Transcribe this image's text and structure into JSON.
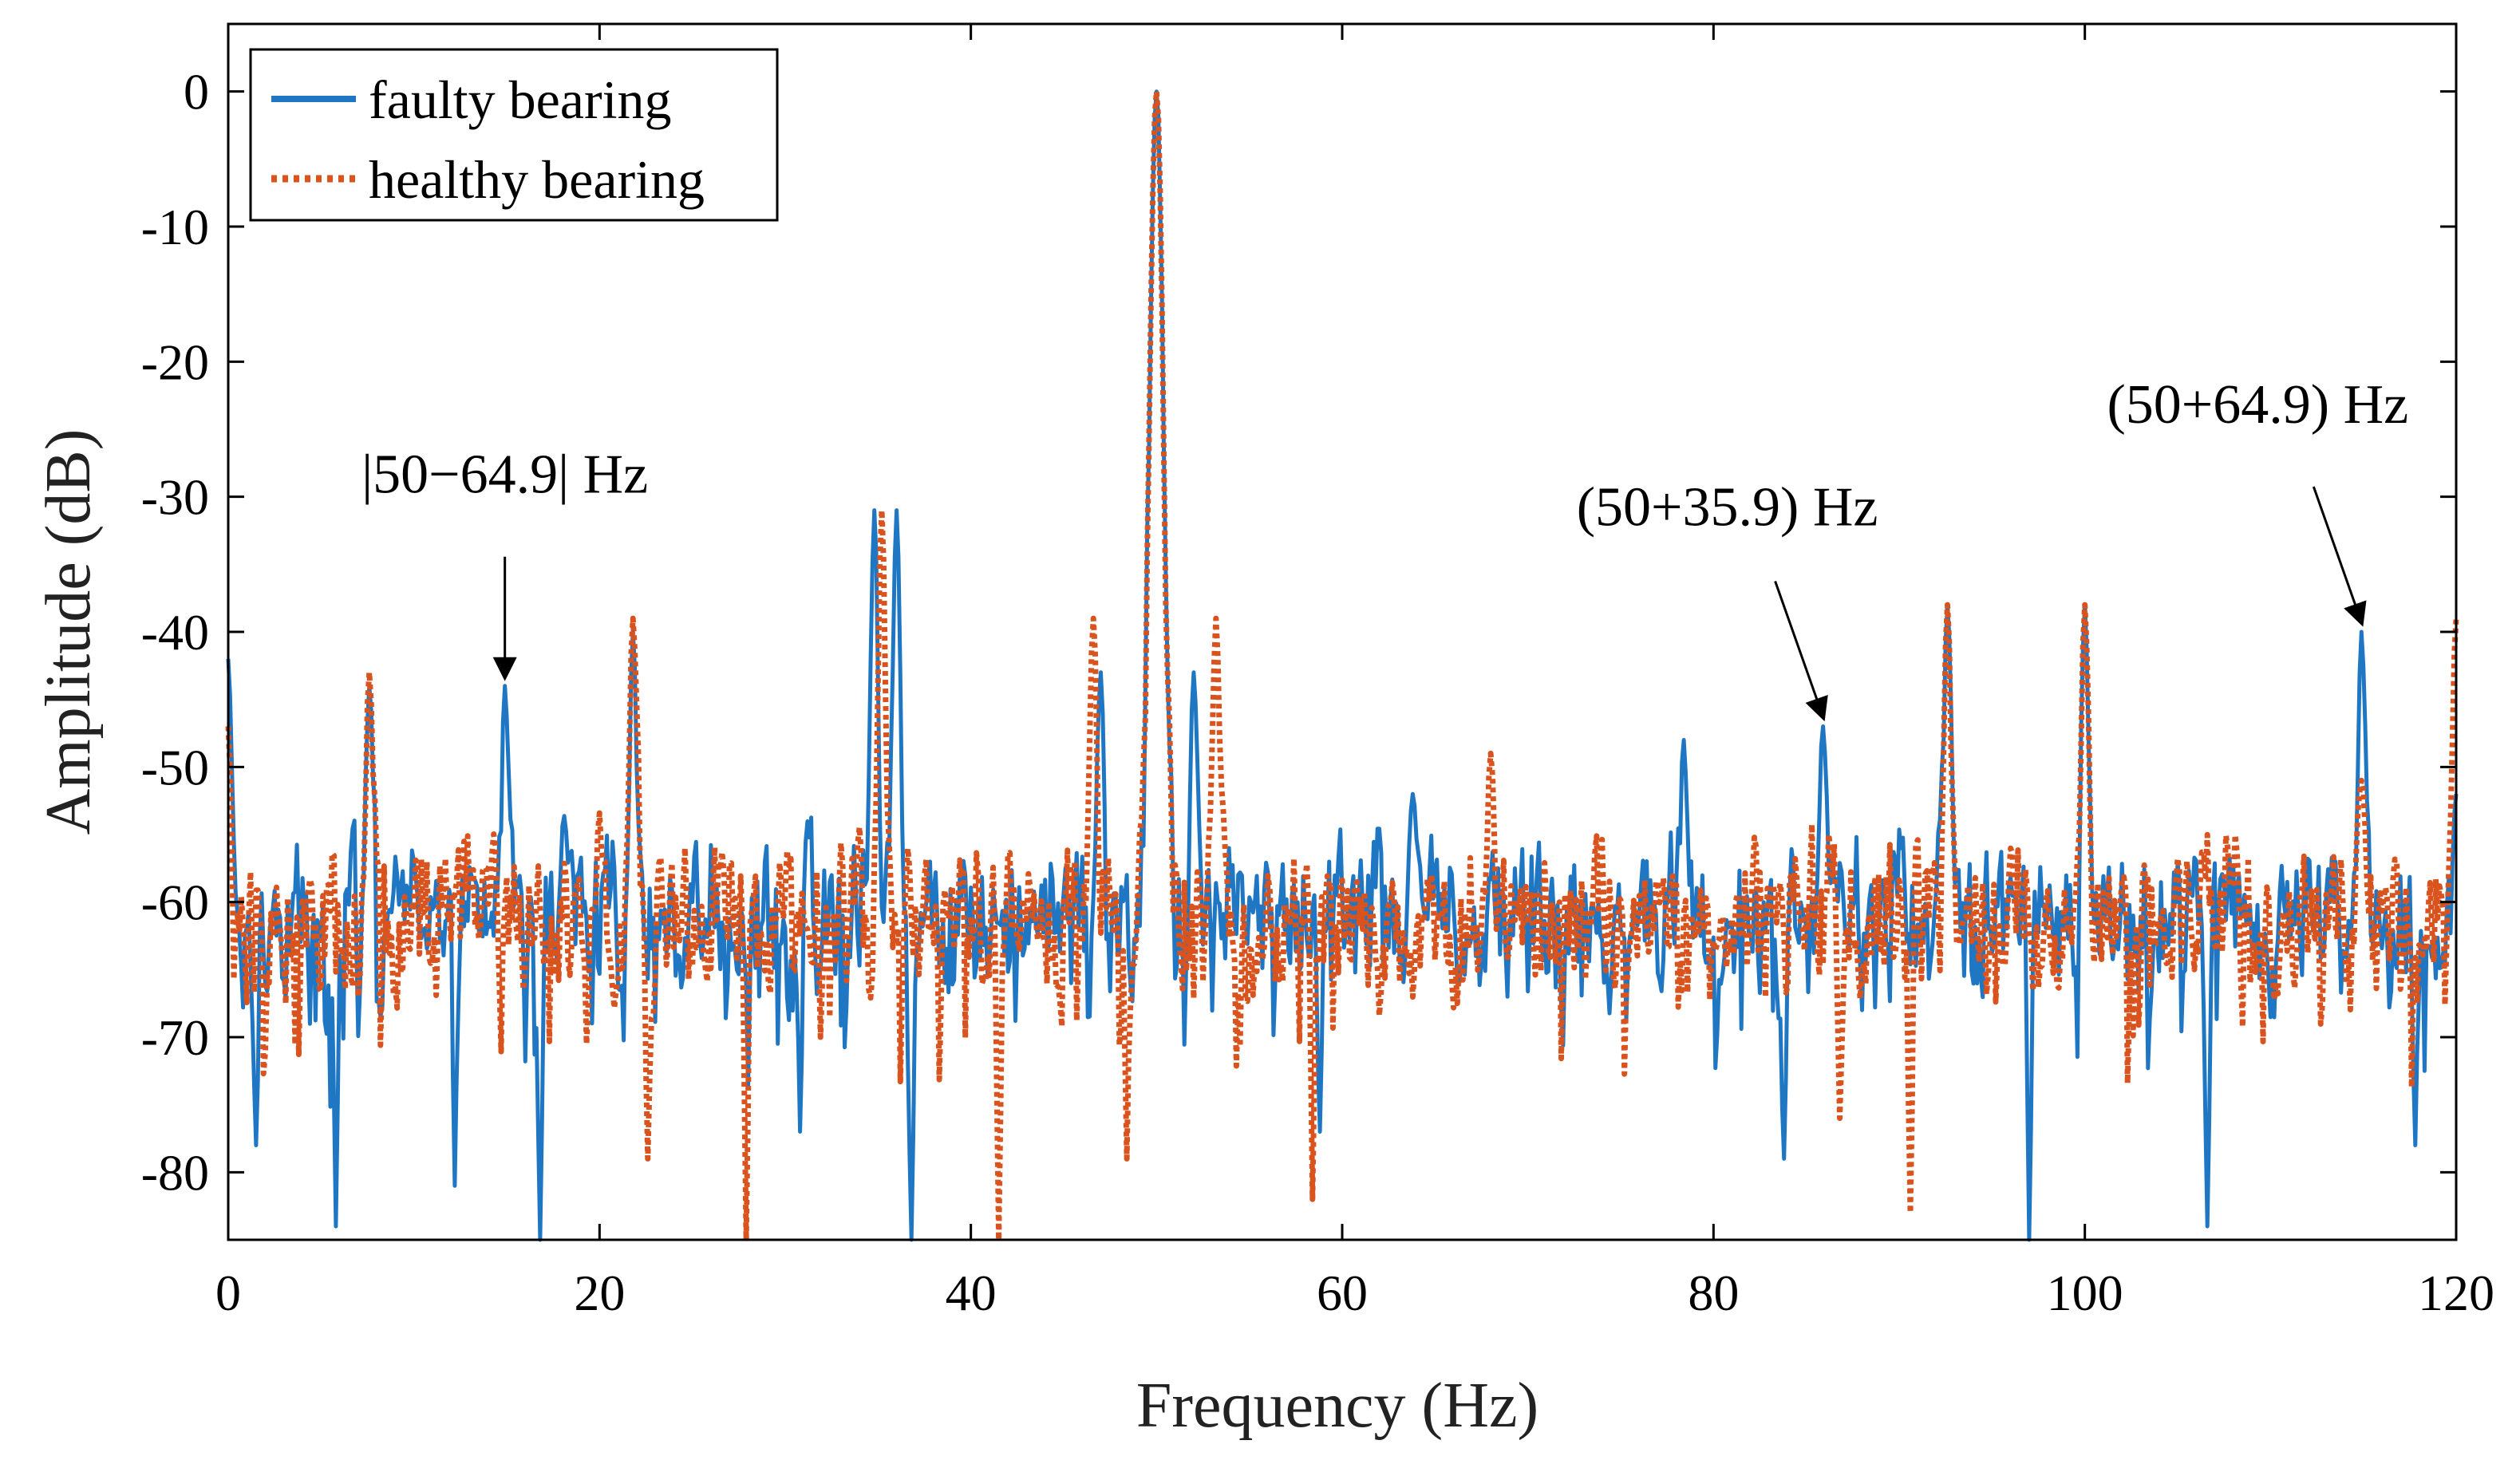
{
  "chart_data": {
    "type": "line",
    "title": "",
    "xlabel": "Frequency (Hz)",
    "ylabel": "Amplitude (dB)",
    "xlim": [
      0,
      120
    ],
    "ylim": [
      -85,
      5
    ],
    "xticks": [
      0,
      20,
      40,
      60,
      80,
      100,
      120
    ],
    "xtick_labels": [
      "0",
      "20",
      "40",
      "60",
      "80",
      "100",
      "120"
    ],
    "yticks": [
      0,
      -10,
      -20,
      -30,
      -40,
      -50,
      -60,
      -70,
      -80
    ],
    "ytick_labels": [
      "0",
      "-10",
      "-20",
      "-30",
      "-40",
      "-50",
      "-60",
      "-70",
      "-80"
    ],
    "grid": false,
    "legend_position": "top-left",
    "noise_floor_db": -61,
    "series": [
      {
        "name": "faulty bearing",
        "color": "#1f77c4",
        "style": "solid",
        "seed": 17,
        "peaks": [
          {
            "f": 0.0,
            "amp": -42
          },
          {
            "f": 7.6,
            "amp": -44
          },
          {
            "f": 14.9,
            "amp": -44
          },
          {
            "f": 21.8,
            "amp": -40
          },
          {
            "f": 34.8,
            "amp": -31
          },
          {
            "f": 36.0,
            "amp": -31
          },
          {
            "f": 47.0,
            "amp": -43
          },
          {
            "f": 50.0,
            "amp": 0
          },
          {
            "f": 52.0,
            "amp": -43
          },
          {
            "f": 63.8,
            "amp": -52
          },
          {
            "f": 78.4,
            "amp": -48
          },
          {
            "f": 85.9,
            "amp": -47
          },
          {
            "f": 92.6,
            "amp": -38
          },
          {
            "f": 100.0,
            "amp": -38
          },
          {
            "f": 114.9,
            "amp": -40
          },
          {
            "f": 120.0,
            "amp": -52
          }
        ],
        "dips": [
          {
            "f": 1.5,
            "amp": -78
          },
          {
            "f": 5.8,
            "amp": -84
          },
          {
            "f": 12.2,
            "amp": -81
          },
          {
            "f": 16.8,
            "amp": -85
          },
          {
            "f": 30.8,
            "amp": -77
          },
          {
            "f": 36.8,
            "amp": -85
          },
          {
            "f": 58.8,
            "amp": -77
          },
          {
            "f": 83.8,
            "amp": -79
          },
          {
            "f": 97.0,
            "amp": -85
          },
          {
            "f": 106.6,
            "amp": -84
          },
          {
            "f": 117.8,
            "amp": -78
          }
        ]
      },
      {
        "name": "healthy bearing",
        "color": "#d9531e",
        "style": "dotted",
        "seed": 91,
        "peaks": [
          {
            "f": 0.0,
            "amp": -47
          },
          {
            "f": 7.6,
            "amp": -43
          },
          {
            "f": 21.8,
            "amp": -39
          },
          {
            "f": 35.2,
            "amp": -31
          },
          {
            "f": 46.6,
            "amp": -39
          },
          {
            "f": 50.0,
            "amp": 0
          },
          {
            "f": 53.2,
            "amp": -39
          },
          {
            "f": 68.0,
            "amp": -49
          },
          {
            "f": 92.6,
            "amp": -38
          },
          {
            "f": 100.0,
            "amp": -38
          },
          {
            "f": 114.9,
            "amp": -51
          },
          {
            "f": 120.0,
            "amp": -39
          }
        ],
        "dips": [
          {
            "f": 22.6,
            "amp": -79
          },
          {
            "f": 27.9,
            "amp": -85
          },
          {
            "f": 41.5,
            "amp": -85
          },
          {
            "f": 48.4,
            "amp": -79
          },
          {
            "f": 58.4,
            "amp": -82
          },
          {
            "f": 90.6,
            "amp": -83
          },
          {
            "f": 86.8,
            "amp": -76
          }
        ]
      }
    ],
    "annotations": [
      {
        "text": "|50−64.9| Hz",
        "x": 14.9,
        "y": -44
      },
      {
        "text": "(50+35.9) Hz",
        "x": 85.9,
        "y": -47
      },
      {
        "text": "(50+64.9) Hz",
        "x": 114.9,
        "y": -40
      }
    ]
  }
}
